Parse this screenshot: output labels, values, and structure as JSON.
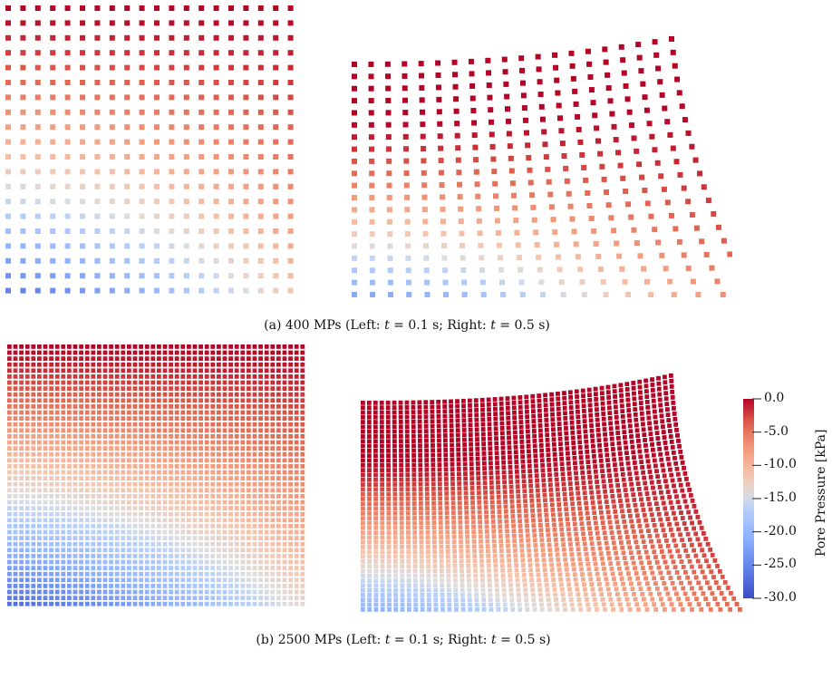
{
  "captions": {
    "a": {
      "prefix": "(a) 400 MPs (Left: ",
      "t1": "t",
      "mid": " = 0.1 s; Right: ",
      "t2": "t",
      "suffix": " = 0.5 s)"
    },
    "b": {
      "prefix": "(b) 2500 MPs (Left: ",
      "t1": "t",
      "mid": " = 0.1 s; Right: ",
      "t2": "t",
      "suffix": " = 0.5 s)"
    }
  },
  "colorbar": {
    "title": "Pore Pressure [kPa]",
    "range": [
      -30,
      0
    ],
    "ticks": [
      "0.0",
      "-5.0",
      "-10.0",
      "-15.0",
      "-20.0",
      "-25.0",
      "-30.0"
    ],
    "colormap": "coolwarm",
    "colors": {
      "low": "#3b4cc0",
      "mid": "#dddddd",
      "high": "#b40426"
    }
  },
  "panels": {
    "a_left": {
      "material_points": 400,
      "time_s": 0.1
    },
    "a_right": {
      "material_points": 400,
      "time_s": 0.5
    },
    "b_left": {
      "material_points": 2500,
      "time_s": 0.1
    },
    "b_right": {
      "material_points": 2500,
      "time_s": 0.5
    }
  }
}
